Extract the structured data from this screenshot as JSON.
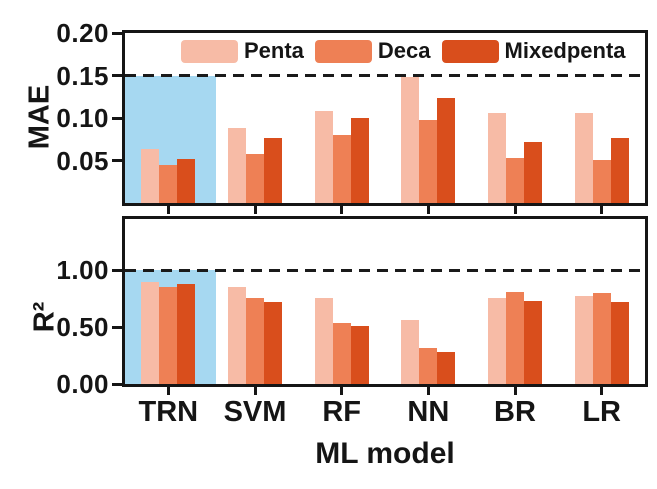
{
  "figure": {
    "xlabel": "ML model",
    "background_color": "#ffffff",
    "axis_color": "#151515",
    "highlight": {
      "category": "TRN",
      "color": "#a6d8f1"
    }
  },
  "chart_data": [
    {
      "type": "bar",
      "title": "",
      "ylabel": "MAE",
      "xlabel": "",
      "categories": [
        "TRN",
        "SVM",
        "RF",
        "NN",
        "BR",
        "LR"
      ],
      "series": [
        {
          "name": "Penta",
          "color": "#f7bba6",
          "values": [
            0.064,
            0.088,
            0.108,
            0.148,
            0.106,
            0.106
          ]
        },
        {
          "name": "Deca",
          "color": "#ee8055",
          "values": [
            0.045,
            0.058,
            0.08,
            0.098,
            0.053,
            0.051
          ]
        },
        {
          "name": "Mixedpenta",
          "color": "#d94e1c",
          "values": [
            0.052,
            0.076,
            0.1,
            0.123,
            0.072,
            0.076
          ]
        }
      ],
      "ylim": [
        0,
        0.2
      ],
      "yticks": [
        {
          "value": 0.05,
          "label": "0.05"
        },
        {
          "value": 0.1,
          "label": "0.10"
        },
        {
          "value": 0.15,
          "label": "0.15"
        },
        {
          "value": 0.2,
          "label": "0.20"
        }
      ],
      "reference_line": 0.15,
      "reference_line_style": "dashed",
      "grid": false,
      "legend": true,
      "legend_position": "top-inside",
      "highlighted_category": "TRN"
    },
    {
      "type": "bar",
      "title": "",
      "ylabel": "R²",
      "xlabel": "ML model",
      "categories": [
        "TRN",
        "SVM",
        "RF",
        "NN",
        "BR",
        "LR"
      ],
      "series": [
        {
          "name": "Penta",
          "color": "#f7bba6",
          "values": [
            0.9,
            0.85,
            0.76,
            0.56,
            0.76,
            0.77
          ]
        },
        {
          "name": "Deca",
          "color": "#ee8055",
          "values": [
            0.85,
            0.76,
            0.54,
            0.32,
            0.81,
            0.8
          ]
        },
        {
          "name": "Mixedpenta",
          "color": "#d94e1c",
          "values": [
            0.88,
            0.72,
            0.51,
            0.28,
            0.73,
            0.72
          ]
        }
      ],
      "ylim": [
        0,
        1.45
      ],
      "yticks": [
        {
          "value": 0.0,
          "label": "0.00"
        },
        {
          "value": 0.5,
          "label": "0.50"
        },
        {
          "value": 1.0,
          "label": "1.00"
        }
      ],
      "reference_line": 1.0,
      "reference_line_style": "dashed",
      "grid": false,
      "legend": false,
      "highlighted_category": "TRN"
    }
  ]
}
